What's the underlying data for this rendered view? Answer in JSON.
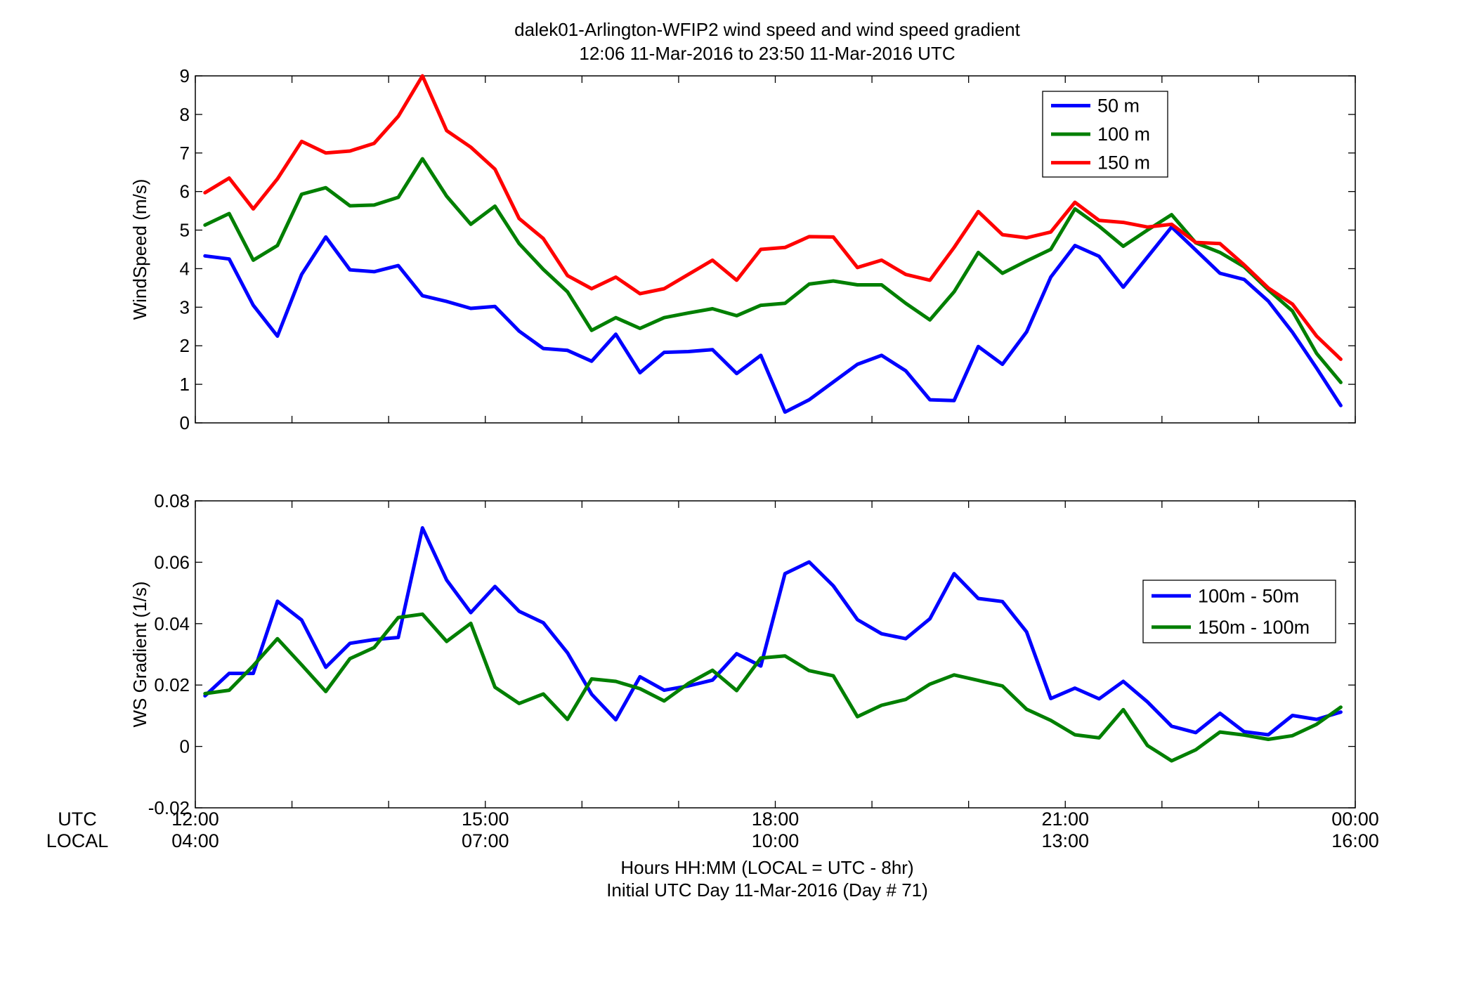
{
  "figure": {
    "title_line1": "dalek01-Arlington-WFIP2  wind speed and wind speed gradient",
    "title_line2": "12:06 11-Mar-2016 to 23:50 11-Mar-2016  UTC",
    "xlabel_line1": "Hours HH:MM  (LOCAL = UTC - 8hr)",
    "xlabel_line2": "Initial UTC Day 11-Mar-2016 (Day # 71)",
    "row_label_utc": "UTC",
    "row_label_local": "LOCAL",
    "tick_labels_utc": [
      "12:00",
      "15:00",
      "18:00",
      "21:00",
      "00:00"
    ],
    "tick_labels_local": [
      "04:00",
      "07:00",
      "10:00",
      "13:00",
      "16:00"
    ]
  },
  "chart_data": [
    {
      "type": "line",
      "title": "",
      "xlabel": "",
      "ylabel": "WindSpeed (m/s)",
      "x_units": "hours UTC",
      "xlim": [
        12,
        24
      ],
      "ylim": [
        0,
        9
      ],
      "yticks": [
        0,
        1,
        2,
        3,
        4,
        5,
        6,
        7,
        8,
        9
      ],
      "grid": false,
      "legend_position": "top-right",
      "x": [
        12.1,
        12.35,
        12.6,
        12.85,
        13.1,
        13.35,
        13.6,
        13.85,
        14.1,
        14.35,
        14.6,
        14.85,
        15.1,
        15.35,
        15.6,
        15.85,
        16.1,
        16.35,
        16.6,
        16.85,
        17.1,
        17.35,
        17.6,
        17.85,
        18.1,
        18.35,
        18.6,
        18.85,
        19.1,
        19.35,
        19.6,
        19.85,
        20.1,
        20.35,
        20.6,
        20.85,
        21.1,
        21.35,
        21.6,
        21.85,
        22.1,
        22.35,
        22.6,
        22.85,
        23.1,
        23.35,
        23.6,
        23.85
      ],
      "series": [
        {
          "name": "50 m",
          "color": "#0000ff",
          "values": [
            4.33,
            4.25,
            3.05,
            2.25,
            3.85,
            4.82,
            3.97,
            3.92,
            4.08,
            3.3,
            3.15,
            2.97,
            3.02,
            2.38,
            1.93,
            1.88,
            1.6,
            2.3,
            1.3,
            1.83,
            1.85,
            1.9,
            1.28,
            1.75,
            0.28,
            0.6,
            1.06,
            1.52,
            1.75,
            1.35,
            0.6,
            0.58,
            1.98,
            1.52,
            2.36,
            3.78,
            4.6,
            4.32,
            3.52,
            4.3,
            5.08,
            4.48,
            3.88,
            3.72,
            3.16,
            2.35,
            1.42,
            0.45
          ]
        },
        {
          "name": "100 m",
          "color": "#007f00",
          "values": [
            5.13,
            5.43,
            4.22,
            4.6,
            5.93,
            6.1,
            5.63,
            5.65,
            5.85,
            6.85,
            5.88,
            5.15,
            5.62,
            4.65,
            3.98,
            3.4,
            2.4,
            2.73,
            2.45,
            2.73,
            2.85,
            2.96,
            2.78,
            3.05,
            3.1,
            3.6,
            3.68,
            3.58,
            3.58,
            3.1,
            2.67,
            3.4,
            4.42,
            3.88,
            4.2,
            4.5,
            5.55,
            5.1,
            4.58,
            5.0,
            5.4,
            4.67,
            4.42,
            4.05,
            3.45,
            2.9,
            1.8,
            1.05
          ]
        },
        {
          "name": "150 m",
          "color": "#ff0000",
          "values": [
            5.97,
            6.35,
            5.55,
            6.33,
            7.3,
            7.0,
            7.05,
            7.25,
            7.95,
            9.0,
            7.58,
            7.15,
            6.58,
            5.3,
            4.78,
            3.82,
            3.48,
            3.78,
            3.35,
            3.48,
            3.85,
            4.22,
            3.7,
            4.5,
            4.55,
            4.83,
            4.82,
            4.03,
            4.22,
            3.85,
            3.7,
            4.55,
            5.48,
            4.88,
            4.8,
            4.95,
            5.72,
            5.25,
            5.2,
            5.08,
            5.15,
            4.68,
            4.65,
            4.1,
            3.5,
            3.08,
            2.25,
            1.65
          ]
        }
      ]
    },
    {
      "type": "line",
      "title": "",
      "xlabel": "",
      "ylabel": "WS Gradient (1/s)",
      "x_units": "hours UTC",
      "xlim": [
        12,
        24
      ],
      "ylim": [
        -0.02,
        0.08
      ],
      "yticks": [
        -0.02,
        0,
        0.02,
        0.04,
        0.06,
        0.08
      ],
      "ytick_labels": [
        "-0.02",
        "0",
        "0.02",
        "0.04",
        "0.06",
        "0.08"
      ],
      "grid": false,
      "legend_position": "right",
      "x": [
        12.1,
        12.35,
        12.6,
        12.85,
        13.1,
        13.35,
        13.6,
        13.85,
        14.1,
        14.35,
        14.6,
        14.85,
        15.1,
        15.35,
        15.6,
        15.85,
        16.1,
        16.35,
        16.6,
        16.85,
        17.1,
        17.35,
        17.6,
        17.85,
        18.1,
        18.35,
        18.6,
        18.85,
        19.1,
        19.35,
        19.6,
        19.85,
        20.1,
        20.35,
        20.6,
        20.85,
        21.1,
        21.35,
        21.6,
        21.85,
        22.1,
        22.35,
        22.6,
        22.85,
        23.1,
        23.35,
        23.6,
        23.85
      ],
      "series": [
        {
          "name": "100m - 50m",
          "color": "#0000ff",
          "values": [
            0.0165,
            0.0238,
            0.0238,
            0.0473,
            0.0412,
            0.0258,
            0.0336,
            0.0348,
            0.0355,
            0.0712,
            0.0542,
            0.0436,
            0.0521,
            0.044,
            0.0403,
            0.0305,
            0.017,
            0.0087,
            0.0227,
            0.0183,
            0.0197,
            0.0216,
            0.0302,
            0.0262,
            0.0563,
            0.0601,
            0.0523,
            0.0413,
            0.0367,
            0.0351,
            0.0416,
            0.0563,
            0.0482,
            0.0472,
            0.0373,
            0.0156,
            0.019,
            0.0155,
            0.0212,
            0.0145,
            0.0066,
            0.0045,
            0.0108,
            0.0048,
            0.0038,
            0.0101,
            0.0088,
            0.0112
          ]
        },
        {
          "name": "150m - 100m",
          "color": "#007f00",
          "values": [
            0.0172,
            0.0183,
            0.0263,
            0.0351,
            0.0266,
            0.0179,
            0.0286,
            0.0322,
            0.042,
            0.0431,
            0.0342,
            0.0401,
            0.0193,
            0.014,
            0.0171,
            0.0088,
            0.022,
            0.0212,
            0.0188,
            0.0148,
            0.0205,
            0.0248,
            0.0182,
            0.0288,
            0.0295,
            0.0247,
            0.023,
            0.0097,
            0.0134,
            0.0153,
            0.0203,
            0.0233,
            0.0215,
            0.0197,
            0.0121,
            0.0085,
            0.0038,
            0.0028,
            0.012,
            0.0003,
            -0.0047,
            -0.0011,
            0.0047,
            0.0037,
            0.0023,
            0.0035,
            0.0072,
            0.0128
          ]
        }
      ]
    }
  ]
}
